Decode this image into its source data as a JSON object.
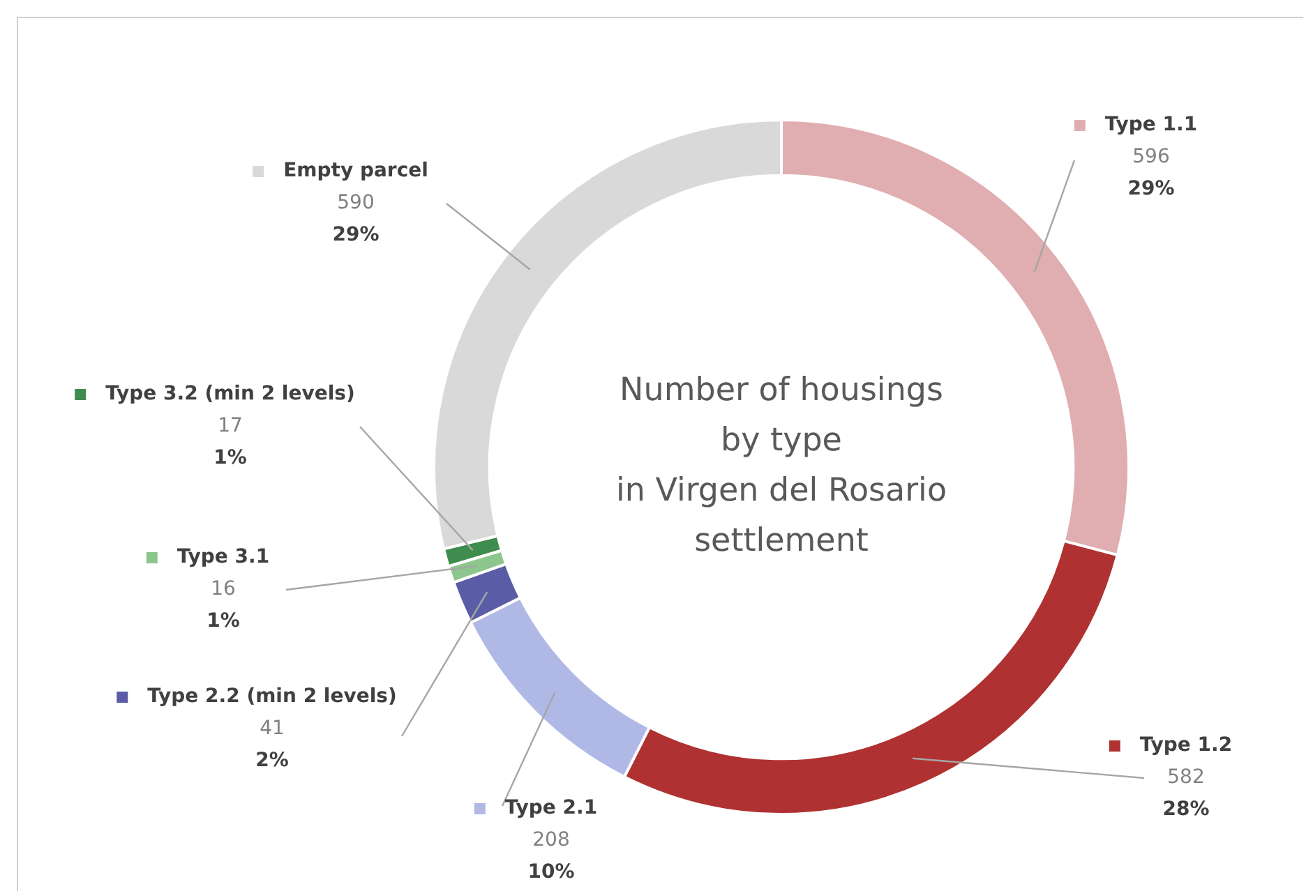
{
  "chart_data": {
    "type": "donut",
    "title": "Number of housings\nby type\nin Virgen del Rosario\nsettlement",
    "categories": [
      "Type 1.1",
      "Type 1.2",
      "Type 2.1",
      "Type 2.2 (min 2 levels)",
      "Type 3.1",
      "Type 3.2 (min 2 levels)",
      "Empty parcel"
    ],
    "values": [
      596,
      582,
      208,
      41,
      16,
      17,
      590
    ],
    "value_labels": [
      "596\n29%",
      "582\n28%",
      "208\n10%",
      "41\n2%",
      "16\n1%",
      "17\n1%",
      "590\n29%"
    ],
    "colors": [
      "#e0aeb0",
      "#b03131",
      "#b0b9e6",
      "#5a5ca6",
      "#8cc68c",
      "#3e8c4e",
      "#d9d9d9"
    ],
    "legend": true
  }
}
